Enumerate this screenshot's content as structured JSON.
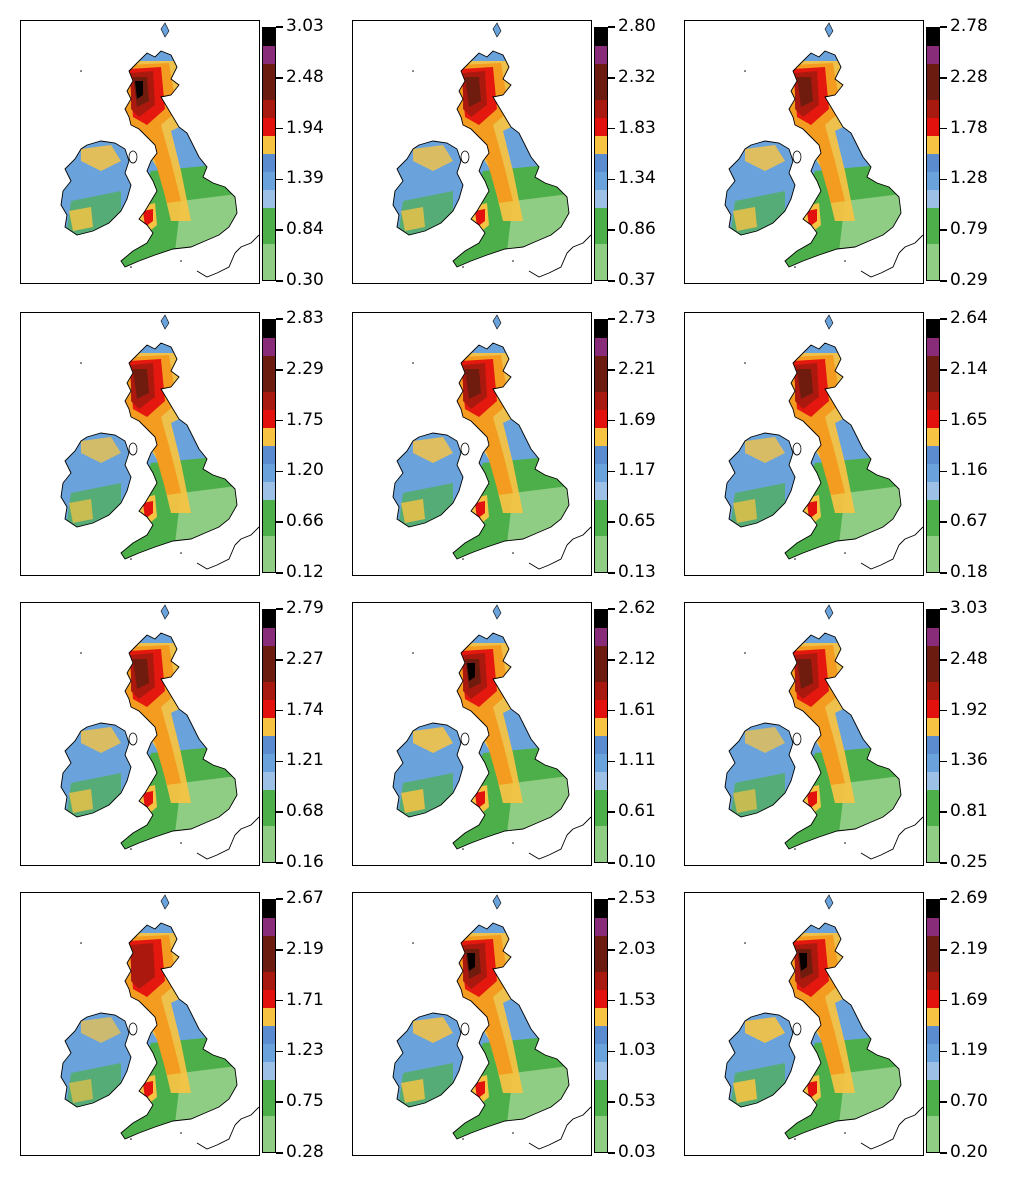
{
  "palette": [
    "#8fcd84",
    "#4daf4a",
    "#9cc0e6",
    "#6aa3dc",
    "#5b8ccf",
    "#f6c343",
    "#f39a1e",
    "#e3110e",
    "#a8190f",
    "#6b1b0f",
    "#882c7a",
    "#1a1a1a",
    "#000000"
  ],
  "colorbar_segments": [
    "#8fcd84",
    "#8fcd84",
    "#4daf4a",
    "#4daf4a",
    "#9cc0e6",
    "#6aa3dc",
    "#5b8ccf",
    "#f6c343",
    "#e3110e",
    "#a8190f",
    "#6b1b0f",
    "#6b1b0f",
    "#882c7a",
    "#000000"
  ],
  "chart_data": [
    {
      "type": "heatmap",
      "ticks": [
        "0.30",
        "0.84",
        "1.39",
        "1.94",
        "2.48",
        "3.03"
      ],
      "highland": 0.9
    },
    {
      "type": "heatmap",
      "ticks": [
        "0.37",
        "0.86",
        "1.34",
        "1.83",
        "2.32",
        "2.80"
      ],
      "highland": 0.8
    },
    {
      "type": "heatmap",
      "ticks": [
        "0.29",
        "0.79",
        "1.28",
        "1.78",
        "2.28",
        "2.78"
      ],
      "highland": 0.85
    },
    {
      "type": "heatmap",
      "ticks": [
        "0.12",
        "0.66",
        "1.20",
        "1.75",
        "2.29",
        "2.83"
      ],
      "highland": 0.7
    },
    {
      "type": "heatmap",
      "ticks": [
        "0.13",
        "0.65",
        "1.17",
        "1.69",
        "2.21",
        "2.73"
      ],
      "highland": 0.85
    },
    {
      "type": "heatmap",
      "ticks": [
        "0.18",
        "0.67",
        "1.16",
        "1.65",
        "2.14",
        "2.64"
      ],
      "highland": 0.75
    },
    {
      "type": "heatmap",
      "ticks": [
        "0.16",
        "0.68",
        "1.21",
        "1.74",
        "2.27",
        "2.79"
      ],
      "highland": 0.8
    },
    {
      "type": "heatmap",
      "ticks": [
        "0.10",
        "0.61",
        "1.11",
        "1.61",
        "2.12",
        "2.62"
      ],
      "highland": 0.95
    },
    {
      "type": "heatmap",
      "ticks": [
        "0.25",
        "0.81",
        "1.36",
        "1.92",
        "2.48",
        "3.03"
      ],
      "highland": 0.65
    },
    {
      "type": "heatmap",
      "ticks": [
        "0.28",
        "0.75",
        "1.23",
        "1.71",
        "2.19",
        "2.67"
      ],
      "highland": 0.6
    },
    {
      "type": "heatmap",
      "ticks": [
        "0.03",
        "0.53",
        "1.03",
        "1.53",
        "2.03",
        "2.53"
      ],
      "highland": 0.9
    },
    {
      "type": "heatmap",
      "ticks": [
        "0.20",
        "0.70",
        "1.19",
        "1.69",
        "2.19",
        "2.69"
      ],
      "highland": 1.0
    }
  ]
}
